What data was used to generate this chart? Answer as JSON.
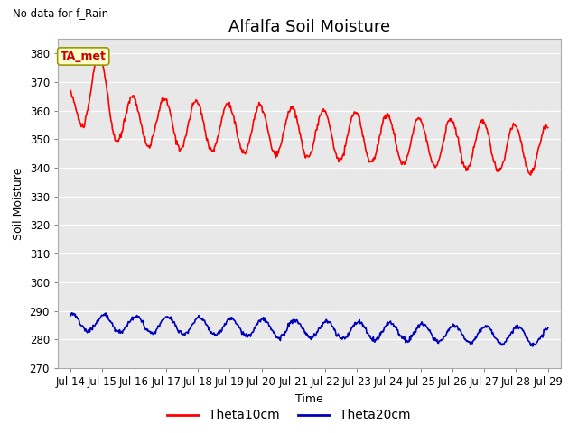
{
  "title": "Alfalfa Soil Moisture",
  "xlabel": "Time",
  "ylabel": "Soil Moisture",
  "top_left_note": "No data for f_Rain",
  "legend_label_annotation": "TA_met",
  "ylim": [
    270,
    385
  ],
  "yticks": [
    270,
    280,
    290,
    300,
    310,
    320,
    330,
    340,
    350,
    360,
    370,
    380
  ],
  "x_tick_labels": [
    "Jul 14",
    "Jul 15",
    "Jul 16",
    "Jul 17",
    "Jul 18",
    "Jul 19",
    "Jul 20",
    "Jul 21",
    "Jul 22",
    "Jul 23",
    "Jul 24",
    "Jul 25",
    "Jul 26",
    "Jul 27",
    "Jul 28",
    "Jul 29"
  ],
  "line1_color": "#ff0000",
  "line2_color": "#0000bb",
  "line1_label": "Theta10cm",
  "line2_label": "Theta20cm",
  "fig_bg_color": "#ffffff",
  "plot_bg_color": "#e8e8e8",
  "title_fontsize": 13,
  "axis_label_fontsize": 9,
  "tick_fontsize": 8.5,
  "legend_fontsize": 10
}
